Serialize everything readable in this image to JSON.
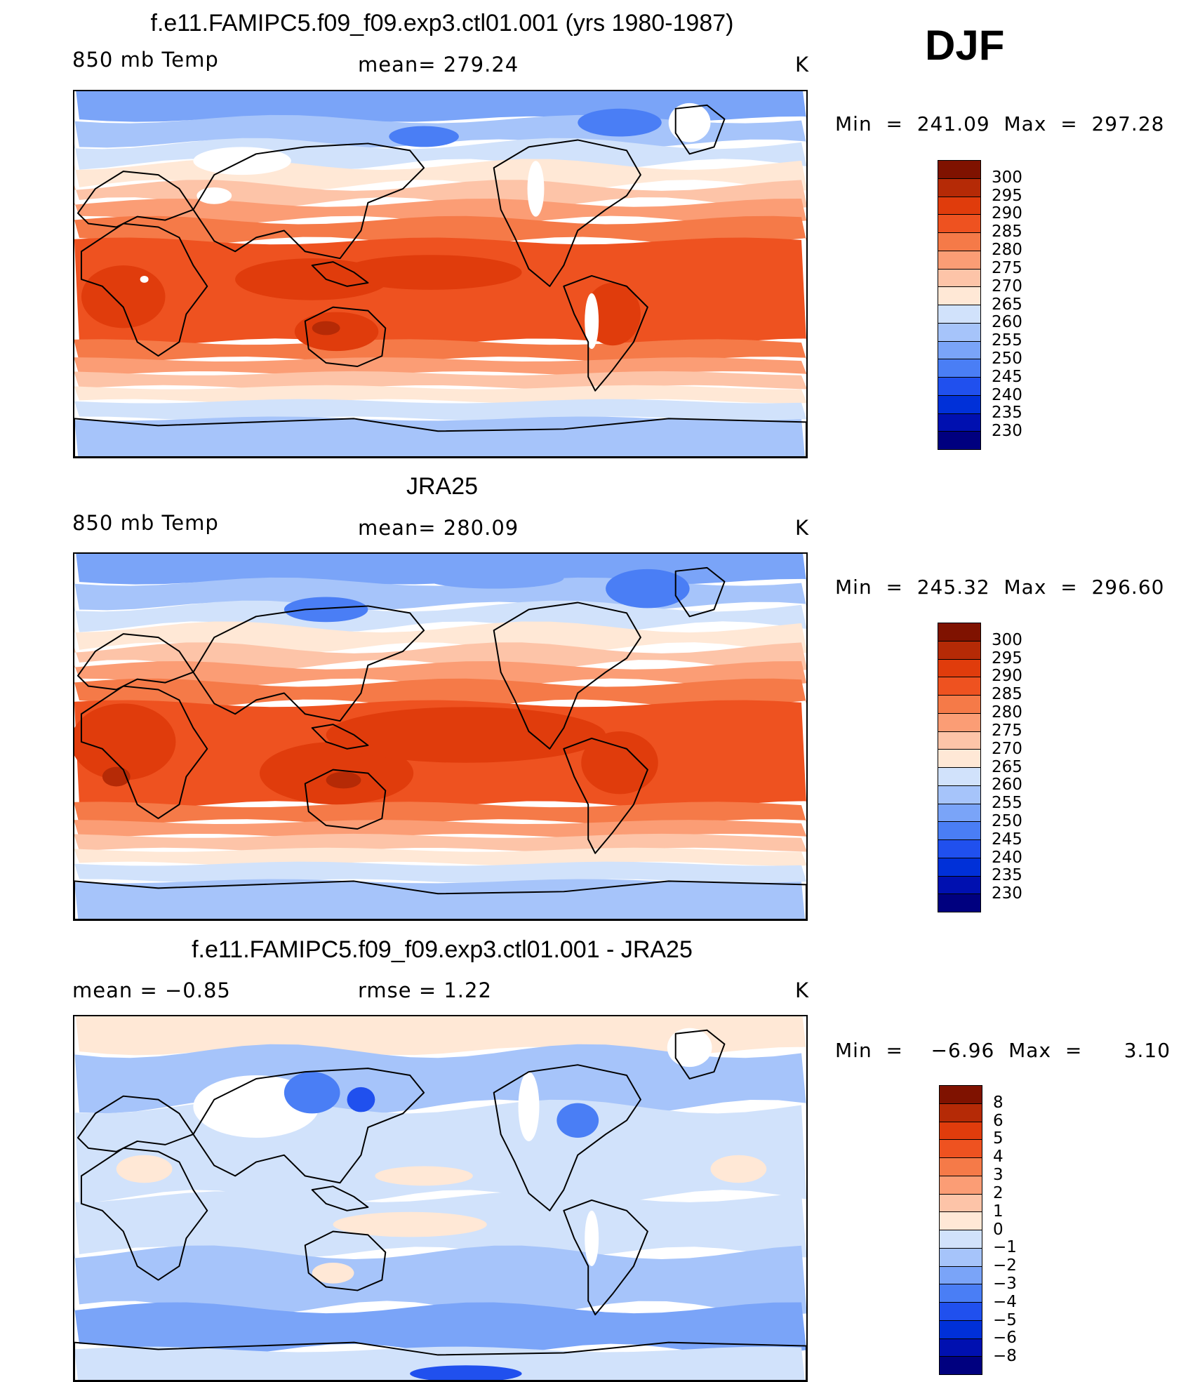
{
  "season": "DJF",
  "colors": {
    "abs_scale": [
      "#00007f",
      "#0010b0",
      "#0030d8",
      "#2050ee",
      "#4a7ef5",
      "#7aa4f8",
      "#a6c4fa",
      "#d1e2fb",
      "#ffe8d6",
      "#fdc4a8",
      "#fb9d75",
      "#f57a48",
      "#ee5220",
      "#e03c0c",
      "#b52a06",
      "#7f1200"
    ],
    "diff_scale": [
      "#00007f",
      "#0010b0",
      "#0030d8",
      "#2050ee",
      "#4a7ef5",
      "#7aa4f8",
      "#a6c4fa",
      "#d1e2fb",
      "#ffe8d6",
      "#fdc4a8",
      "#fb9d75",
      "#f57a48",
      "#ee5220",
      "#e03c0c",
      "#b52a06",
      "#7f1200"
    ],
    "land_outline": "#000000",
    "missing": "#ffffff"
  },
  "panels": [
    {
      "id": "model",
      "title": "f.e11.FAMIPC5.f09_f09.exp3.ctl01.001 (yrs 1980-1987)",
      "left_label": "850 mb Temp",
      "center_label": "mean=  279.24",
      "right_label": "K",
      "minmax": "Min  =  241.09  Max  =  297.28",
      "colorbar_labels": [
        "300",
        "295",
        "290",
        "285",
        "280",
        "275",
        "270",
        "265",
        "260",
        "255",
        "250",
        "245",
        "240",
        "235",
        "230"
      ]
    },
    {
      "id": "obs",
      "title": "JRA25",
      "left_label": "850 mb Temp",
      "center_label": "mean=  280.09",
      "right_label": "K",
      "minmax": "Min  =  245.32  Max  =  296.60",
      "colorbar_labels": [
        "300",
        "295",
        "290",
        "285",
        "280",
        "275",
        "270",
        "265",
        "260",
        "255",
        "250",
        "245",
        "240",
        "235",
        "230"
      ]
    },
    {
      "id": "diff",
      "title": "f.e11.FAMIPC5.f09_f09.exp3.ctl01.001 - JRA25",
      "left_label": "mean  =    −0.85",
      "center_label": "rmse  =     1.22",
      "right_label": "K",
      "minmax": "Min  =    −6.96  Max  =      3.10",
      "colorbar_labels": [
        "8",
        "6",
        "5",
        "4",
        "3",
        "2",
        "1",
        "0",
        "−1",
        "−2",
        "−3",
        "−4",
        "−5",
        "−6",
        "−8"
      ]
    }
  ]
}
